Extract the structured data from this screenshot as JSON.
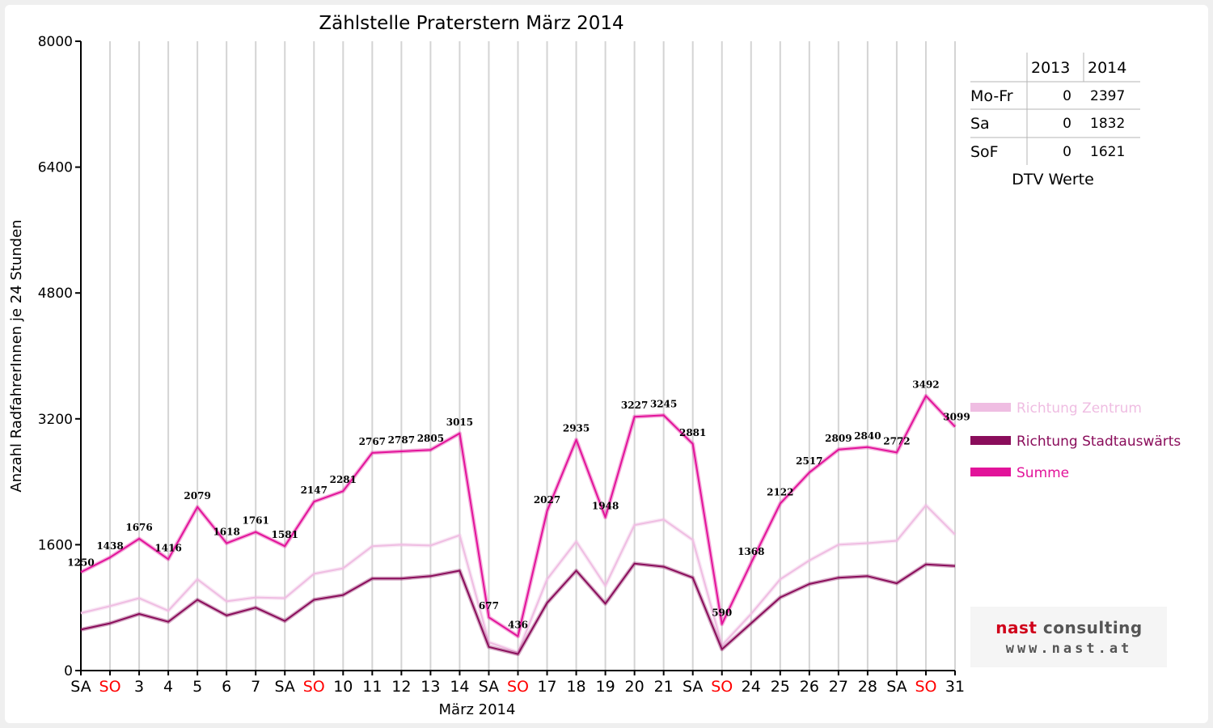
{
  "chart_data": {
    "type": "line",
    "title": "Zählstelle Praterstern März 2014",
    "xlabel": "März 2014",
    "ylabel": "Anzahl RadfahrerInnen je 24 Stunden",
    "ylim": [
      0,
      8000
    ],
    "yticks": [
      "0",
      "1600",
      "3200",
      "4800",
      "6400",
      "8000"
    ],
    "grid": "vertical lines per day",
    "categories": [
      "SA",
      "SO",
      "3",
      "4",
      "5",
      "6",
      "7",
      "SA",
      "SO",
      "10",
      "11",
      "12",
      "13",
      "14",
      "SA",
      "SO",
      "17",
      "18",
      "19",
      "20",
      "21",
      "SA",
      "SO",
      "24",
      "25",
      "26",
      "27",
      "28",
      "SA",
      "SO",
      "31"
    ],
    "weekend_flags": [
      0,
      1,
      0,
      0,
      0,
      0,
      0,
      0,
      1,
      0,
      0,
      0,
      0,
      0,
      0,
      1,
      0,
      0,
      0,
      0,
      0,
      0,
      1,
      0,
      0,
      0,
      0,
      0,
      0,
      1,
      0
    ],
    "series": [
      {
        "name": "Richtung Zentrum",
        "color": "#efbde2",
        "values": [
          730,
          820,
          920,
          760,
          1160,
          880,
          930,
          920,
          1230,
          1300,
          1580,
          1600,
          1590,
          1720,
          360,
          230,
          1160,
          1640,
          1080,
          1850,
          1920,
          1660,
          320,
          720,
          1160,
          1400,
          1600,
          1620,
          1650,
          2100,
          1730
        ]
      },
      {
        "name": "Richtung Stadtauswärts",
        "color": "#8a0d5b",
        "values": [
          520,
          600,
          720,
          620,
          900,
          700,
          800,
          630,
          900,
          960,
          1170,
          1170,
          1200,
          1270,
          300,
          210,
          860,
          1270,
          850,
          1360,
          1320,
          1180,
          270,
          600,
          930,
          1100,
          1180,
          1200,
          1110,
          1350,
          1330
        ]
      },
      {
        "name": "Summe",
        "color": "#e2139a",
        "values": [
          1250,
          1438,
          1676,
          1416,
          2079,
          1618,
          1761,
          1581,
          2147,
          2281,
          2767,
          2787,
          2805,
          3015,
          677,
          436,
          2027,
          2935,
          1948,
          3227,
          3245,
          2881,
          590,
          1368,
          2122,
          2517,
          2809,
          2840,
          2772,
          3492,
          3099
        ]
      }
    ]
  },
  "dtv_table": {
    "columns": [
      "2013",
      "2014"
    ],
    "rows": [
      {
        "label": "Mo-Fr",
        "v2013": "0",
        "v2014": "2397"
      },
      {
        "label": "Sa",
        "v2013": "0",
        "v2014": "1832"
      },
      {
        "label": "SoF",
        "v2013": "0",
        "v2014": "1621"
      }
    ],
    "caption": "DTV Werte"
  },
  "logo": {
    "brand_accent": "nast",
    "brand_rest": "consulting",
    "url": "www.nast.at"
  },
  "colors": {
    "weekend_label": "#ff0000",
    "weekday_label": "#000000"
  }
}
